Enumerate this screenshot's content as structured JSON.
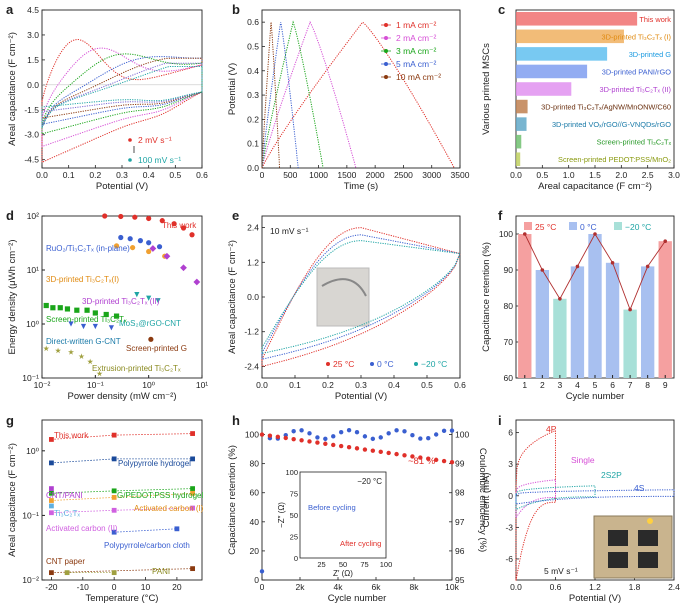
{
  "chart_data": [
    {
      "panel": "a",
      "type": "line",
      "xlabel": "Potential (V)",
      "ylabel": "Areal capacitance (F cm⁻²)",
      "xlim": [
        0,
        0.6
      ],
      "ylim": [
        -5,
        4.5
      ],
      "xticks": [
        "0.0",
        "0.1",
        "0.2",
        "0.3",
        "0.4",
        "0.5",
        "0.6"
      ],
      "yticks": [
        "-4.5",
        "-3.0",
        "-1.5",
        "0.0",
        "1.5",
        "3.0",
        "4.5"
      ],
      "legend_top": "2 mV s⁻¹",
      "legend_bottom": "100 mV s⁻¹",
      "series": [
        {
          "color": "#e0302a",
          "peak_x": 0.12,
          "peak_y": 4.2,
          "low_y": -4.9
        },
        {
          "color": "#d64fd6",
          "peak_x": 0.2,
          "peak_y": 3.3,
          "low_y": -3.9
        },
        {
          "color": "#1aa51a",
          "peak_x": 0.27,
          "peak_y": 2.6,
          "low_y": -3.1
        },
        {
          "color": "#3a5fd0",
          "peak_x": 0.35,
          "peak_y": 2.0,
          "low_y": -2.5
        },
        {
          "color": "#8b3a10",
          "peak_x": 0.42,
          "peak_y": 1.6,
          "low_y": -2.1
        },
        {
          "color": "#7d6ad4",
          "peak_x": 0.5,
          "peak_y": 1.3,
          "low_y": -1.7
        },
        {
          "color": "#20a5a5",
          "peak_x": 0.58,
          "peak_y": 1.1,
          "low_y": -1.4
        }
      ]
    },
    {
      "panel": "b",
      "type": "line",
      "xlabel": "Time (s)",
      "ylabel": "Potential (V)",
      "xlim": [
        0,
        3500
      ],
      "ylim": [
        0,
        0.65
      ],
      "xticks": [
        "0",
        "500",
        "1000",
        "1500",
        "2000",
        "2500",
        "3000",
        "3500"
      ],
      "yticks": [
        "0.0",
        "0.1",
        "0.2",
        "0.3",
        "0.4",
        "0.5",
        "0.6"
      ],
      "series": [
        {
          "name": "1 mA cm⁻²",
          "color": "#e0302a",
          "peak": 1780,
          "end": 3400
        },
        {
          "name": "2 mA cm⁻²",
          "color": "#d64fd6",
          "peak": 850,
          "end": 1660
        },
        {
          "name": "3 mA cm⁻²",
          "color": "#1aa51a",
          "peak": 550,
          "end": 1080
        },
        {
          "name": "5 mA cm⁻²",
          "color": "#3a5fd0",
          "peak": 330,
          "end": 640
        },
        {
          "name": "10 mA cm⁻²",
          "color": "#8b3a10",
          "peak": 160,
          "end": 310
        }
      ]
    },
    {
      "panel": "c",
      "type": "bar",
      "xlabel": "Areal capacitance (F cm⁻²)",
      "ylabel": "Various printed MSCs",
      "xlim": [
        0,
        3.0
      ],
      "xticks": [
        "0.0",
        "0.5",
        "1.0",
        "1.5",
        "2.0",
        "2.5",
        "3.0"
      ],
      "categories": [
        "This work",
        "3D-printed Ti₃C₂Tₓ (I)",
        "3D-printed G",
        "3D-printed PANI/rGO",
        "3D-printed Ti₃C₂Tₓ (II)",
        "3D-printed Ti₃C₂Tₓ/AgNW/MnONW/C60",
        "3D-printed VOₓ/rGO//G-VNQDs/rGO",
        "Screen-printed Ti₃C₂Tₓ",
        "Screen-printed PEDOT:PSS/MnO₂"
      ],
      "values": [
        2.3,
        2.05,
        1.73,
        1.35,
        1.05,
        0.22,
        0.2,
        0.1,
        0.08
      ],
      "colors": [
        "#f07070",
        "#f0b060",
        "#60c0f0",
        "#7f9ef0",
        "#e090f0",
        "#c08050",
        "#60a8c8",
        "#70c070",
        "#c0d060"
      ],
      "label_colors": [
        "#e0302a",
        "#e08a10",
        "#1a9ae0",
        "#3a5fd0",
        "#b040d0",
        "#6a3010",
        "#1a7aa8",
        "#2a9a2a",
        "#8a9a10"
      ]
    },
    {
      "panel": "d",
      "type": "scatter",
      "xlabel": "Power density (mW cm⁻²)",
      "ylabel": "Energy density (μWh cm⁻²)",
      "xscale": "log",
      "yscale": "log",
      "xlim": [
        0.01,
        10
      ],
      "ylim": [
        0.1,
        100
      ],
      "xtick_values": [
        0.01,
        0.1,
        1,
        10
      ],
      "ytick_values": [
        0.1,
        1,
        10,
        100
      ],
      "series": [
        {
          "name": "This work",
          "color": "#e0302a",
          "marker": "circle",
          "points": [
            [
              0.15,
              100
            ],
            [
              0.3,
              98
            ],
            [
              0.55,
              95
            ],
            [
              1.0,
              90
            ],
            [
              1.8,
              82
            ],
            [
              3.0,
              72
            ],
            [
              4.5,
              60
            ],
            [
              6.5,
              45
            ]
          ]
        },
        {
          "name": "RuO₂/Ti₃C₂Tₓ (in-plane)",
          "color": "#3a5fd0",
          "marker": "circle",
          "points": [
            [
              0.3,
              40
            ],
            [
              0.45,
              38
            ],
            [
              0.7,
              35
            ],
            [
              1.0,
              32
            ],
            [
              1.6,
              27
            ]
          ]
        },
        {
          "name": "3D-printed Ti₃C₂Tₓ(I)",
          "color": "#f0a030",
          "marker": "circle",
          "points": [
            [
              0.25,
              28
            ],
            [
              0.5,
              26
            ],
            [
              1.0,
              22
            ],
            [
              2.0,
              18
            ]
          ]
        },
        {
          "name": "3D-printed Ti₃C₂Tₓ (II)",
          "color": "#b040d0",
          "marker": "diamond",
          "points": [
            [
              1.2,
              25
            ],
            [
              2.2,
              18
            ],
            [
              4.5,
              11
            ],
            [
              8.0,
              6
            ]
          ]
        },
        {
          "name": "MoS₂@rGO-CNT",
          "color": "#20a5a5",
          "marker": "triangle",
          "points": [
            [
              0.6,
              3.5
            ],
            [
              1.0,
              3.0
            ],
            [
              1.5,
              2.7
            ]
          ]
        },
        {
          "name": "Screen-printed Ti₃C₂Tₓ",
          "color": "#1aa51a",
          "marker": "square",
          "points": [
            [
              0.012,
              2.2
            ],
            [
              0.016,
              2.0
            ],
            [
              0.022,
              2.0
            ],
            [
              0.03,
              1.9
            ],
            [
              0.045,
              1.8
            ],
            [
              0.07,
              1.8
            ],
            [
              0.1,
              1.6
            ],
            [
              0.16,
              1.5
            ],
            [
              0.25,
              1.4
            ]
          ]
        },
        {
          "name": "Direct-written G-CNT",
          "color": "#3a5fd0",
          "marker": "triangle",
          "points": [
            [
              0.035,
              1.0
            ],
            [
              0.06,
              0.9
            ],
            [
              0.1,
              0.9
            ],
            [
              0.2,
              0.85
            ]
          ]
        },
        {
          "name": "Screen-printed G",
          "color": "#8b3a10",
          "marker": "circle",
          "points": [
            [
              1.1,
              0.52
            ]
          ]
        },
        {
          "name": "Extrusion-printed Ti₃C₂Tₓ",
          "color": "#a0a040",
          "marker": "star",
          "points": [
            [
              0.012,
              0.35
            ],
            [
              0.02,
              0.32
            ],
            [
              0.035,
              0.3
            ],
            [
              0.055,
              0.25
            ],
            [
              0.08,
              0.2
            ],
            [
              0.12,
              0.12
            ]
          ]
        }
      ]
    },
    {
      "panel": "e",
      "type": "line",
      "xlabel": "Potential (V)",
      "ylabel": "Areal capacitance (F cm⁻²)",
      "xlim": [
        0,
        0.6
      ],
      "ylim": [
        -2.8,
        2.8
      ],
      "xticks": [
        "0.0",
        "0.1",
        "0.2",
        "0.3",
        "0.4",
        "0.5",
        "0.6"
      ],
      "yticks": [
        "-2.4",
        "-1.2",
        "0.0",
        "1.2",
        "2.4"
      ],
      "annotation": "10 mV s⁻¹",
      "series": [
        {
          "name": "25 °C",
          "color": "#e0302a",
          "peak_y": 2.4,
          "low_y": -2.4
        },
        {
          "name": "0 °C",
          "color": "#3a5fd0",
          "peak_y": 2.15,
          "low_y": -2.15
        },
        {
          "name": "−20 °C",
          "color": "#20a5a5",
          "peak_y": 1.95,
          "low_y": -1.95
        }
      ]
    },
    {
      "panel": "f",
      "type": "bar",
      "xlabel": "Cycle number",
      "ylabel": "Capacitance retention (%)",
      "ylim": [
        60,
        105
      ],
      "yticks": [
        "60",
        "70",
        "80",
        "90",
        "100"
      ],
      "categories": [
        "1",
        "2",
        "3",
        "4",
        "5",
        "6",
        "7",
        "8",
        "9"
      ],
      "values": [
        100,
        90,
        82,
        91,
        100,
        92,
        79,
        91,
        98
      ],
      "colors": [
        "#f5a0a0",
        "#a8c0f0",
        "#a8e0d8",
        "#a8c0f0",
        "#a8c0f0",
        "#a8c0f0",
        "#a8e0d8",
        "#a8c0f0",
        "#f5a0a0"
      ],
      "legend": [
        "25 °C",
        "0 °C",
        "−20 °C"
      ]
    },
    {
      "panel": "g",
      "type": "scatter",
      "xlabel": "Temperature (°C)",
      "ylabel": "Areal capacitance (F cm⁻²)",
      "yscale": "log",
      "xlim": [
        -23,
        28
      ],
      "ylim": [
        0.01,
        3
      ],
      "xticks": [
        "-20",
        "-10",
        "0",
        "10",
        "20"
      ],
      "series": [
        {
          "name": "This work",
          "color": "#e0302a",
          "points": [
            [
              -20,
              1.5
            ],
            [
              0,
              1.75
            ],
            [
              25,
              1.85
            ]
          ]
        },
        {
          "name": "Polypyrrole hydrogel",
          "color": "#1a4a9a",
          "points": [
            [
              -20,
              0.65
            ],
            [
              0,
              0.75
            ],
            [
              25,
              0.75
            ]
          ]
        },
        {
          "name": "G/PEDOT:PSS hydrogel",
          "color": "#1aa51a",
          "points": [
            [
              -20,
              0.22
            ],
            [
              0,
              0.24
            ],
            [
              25,
              0.26
            ]
          ]
        },
        {
          "name": "CNT/PANI",
          "color": "#b040d0",
          "points": [
            [
              -20,
              0.26
            ]
          ]
        },
        {
          "name": "Activated carbon (I)",
          "color": "#f0a030",
          "points": [
            [
              -20,
              0.17
            ],
            [
              0,
              0.19
            ],
            [
              25,
              0.22
            ]
          ]
        },
        {
          "name": "Ti₃C₂Tₓ",
          "color": "#60b0e0",
          "points": [
            [
              -20,
              0.14
            ]
          ]
        },
        {
          "name": "Activated carbon (II)",
          "color": "#d060e0",
          "points": [
            [
              -20,
              0.11
            ],
            [
              0,
              0.12
            ],
            [
              25,
              0.13
            ]
          ]
        },
        {
          "name": "Polypyrrole/carbon cloth",
          "color": "#3a5fd0",
          "points": [
            [
              0,
              0.055
            ],
            [
              20,
              0.062
            ]
          ]
        },
        {
          "name": "CNT paper",
          "color": "#8b3a10",
          "points": [
            [
              -20,
              0.013
            ],
            [
              25,
              0.015
            ]
          ]
        },
        {
          "name": "PANI",
          "color": "#a0a040",
          "points": [
            [
              -15,
              0.013
            ],
            [
              0,
              0.013
            ]
          ]
        }
      ]
    },
    {
      "panel": "h",
      "type": "scatter",
      "xlabel": "Cycle number",
      "ylabel": "Capacitance retention (%)",
      "y2label": "Coulombic efficiency (%)",
      "xlim": [
        0,
        10000
      ],
      "ylim": [
        0,
        110
      ],
      "y2lim": [
        95,
        100.5
      ],
      "xticks": [
        "0",
        "2k",
        "4k",
        "6k",
        "8k",
        "10k"
      ],
      "yticks": [
        "0",
        "20",
        "40",
        "60",
        "80",
        "100"
      ],
      "y2ticks": [
        "95",
        "96",
        "97",
        "98",
        "99",
        "100"
      ],
      "annotation": "~81 %",
      "retention_start": 100,
      "retention_end": 81,
      "efficiency": 100,
      "inset": {
        "title": "−20 °C",
        "xlabel": "Z′ (Ω)",
        "ylabel": "−Z″ (Ω)",
        "xticks": [
          "25",
          "50",
          "75",
          "100"
        ],
        "yticks": [
          "0",
          "25",
          "50",
          "75",
          "100"
        ],
        "before_label": "Before cycling",
        "after_label": "After cycling"
      }
    },
    {
      "panel": "i",
      "type": "line",
      "xlabel": "Potential (V)",
      "ylabel": "Current (mA)",
      "xlim": [
        0,
        2.4
      ],
      "ylim": [
        -8,
        7.2
      ],
      "xticks": [
        "0.0",
        "0.6",
        "1.2",
        "1.8",
        "2.4"
      ],
      "yticks": [
        "-6",
        "-3",
        "0",
        "3",
        "6"
      ],
      "annotation": "5 mV s⁻¹",
      "series": [
        {
          "name": "4P",
          "color": "#e0302a",
          "vmax": 0.6
        },
        {
          "name": "Single",
          "color": "#d64fd6",
          "vmax": 0.6
        },
        {
          "name": "2S2P",
          "color": "#20a5a5",
          "vmax": 1.2
        },
        {
          "name": "4S",
          "color": "#3a5fd0",
          "vmax": 2.4
        }
      ]
    }
  ],
  "panel_letters": [
    "a",
    "b",
    "c",
    "d",
    "e",
    "f",
    "g",
    "h",
    "i"
  ]
}
